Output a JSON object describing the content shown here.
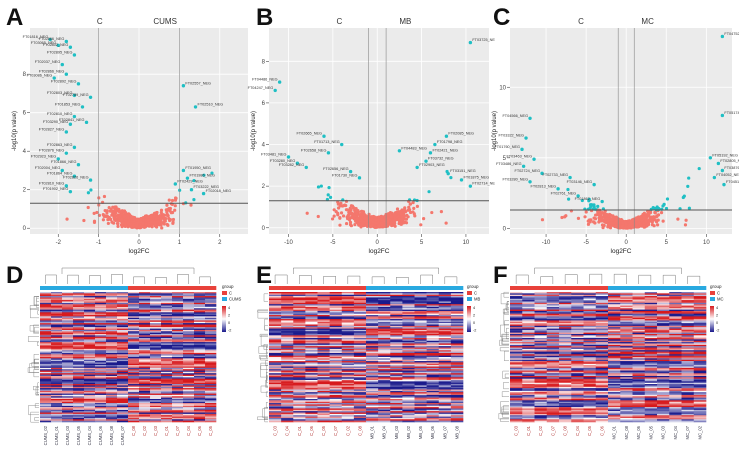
{
  "figure": {
    "panel_letters": [
      "A",
      "B",
      "C",
      "D",
      "E",
      "F"
    ]
  },
  "colors": {
    "grid_bg": "#ebebeb",
    "sig_point": "#1fbfc4",
    "nonsig_point": "#f4776d",
    "threshold_line": "#555555",
    "heat_high": "#d7191c",
    "heat_low": "#1a1a8c",
    "heat_mid": "#ffffff",
    "group_c": "#e8413a",
    "group_treat": "#29a9e0"
  },
  "chart_data": [
    {
      "type": "scatter",
      "panel": "A",
      "title": "CUMS",
      "group_label": "C",
      "xlabel": "log2FC",
      "ylabel": "-log10(p value)",
      "xlim": [
        -2.7,
        2.7
      ],
      "ylim": [
        -0.3,
        10.4
      ],
      "xticks": [
        "-2",
        "-1",
        "0",
        "1",
        "2"
      ],
      "yticks": [
        "0",
        "2",
        "4",
        "6",
        "8"
      ],
      "x_tick_values": [
        -2,
        -1,
        0,
        1,
        2
      ],
      "y_tick_values": [
        0,
        2,
        4,
        6,
        8
      ],
      "threshold_y": 1.3,
      "vlines": [
        -1,
        1
      ],
      "labeled_points": [
        {
          "x": -2.2,
          "y": 9.8,
          "label": "FT01816_NEG"
        },
        {
          "x": -1.8,
          "y": 9.7,
          "label": "FT02866_NEG"
        },
        {
          "x": -2.0,
          "y": 9.5,
          "label": "FT03065_NEG"
        },
        {
          "x": -1.7,
          "y": 9.4,
          "label": "FT02802_NEG"
        },
        {
          "x": -1.6,
          "y": 9.0,
          "label": "FT02895_NEG"
        },
        {
          "x": -1.9,
          "y": 8.5,
          "label": "FT02037_NEG"
        },
        {
          "x": -1.8,
          "y": 8.0,
          "label": "FT02866_NEG"
        },
        {
          "x": -2.1,
          "y": 7.8,
          "label": "FT03086_NEG"
        },
        {
          "x": -1.5,
          "y": 7.5,
          "label": "FT02892_NEG"
        },
        {
          "x": -1.6,
          "y": 6.9,
          "label": "FT02803_NEG"
        },
        {
          "x": -1.2,
          "y": 6.8,
          "label": "FT02789_NEG"
        },
        {
          "x": -1.4,
          "y": 6.3,
          "label": "FT01853_NEG"
        },
        {
          "x": -1.6,
          "y": 5.8,
          "label": "FT02810_NEG"
        },
        {
          "x": -1.7,
          "y": 5.4,
          "label": "FT03290_NEG"
        },
        {
          "x": -1.8,
          "y": 5.0,
          "label": "FT02827_NEG"
        },
        {
          "x": -1.3,
          "y": 5.5,
          "label": "FT02841_NEG"
        },
        {
          "x": -1.6,
          "y": 4.2,
          "label": "FT02863_NEG"
        },
        {
          "x": -1.8,
          "y": 3.9,
          "label": "FT02876_NEG"
        },
        {
          "x": -2.0,
          "y": 3.6,
          "label": "FT02923_NEG"
        },
        {
          "x": -1.5,
          "y": 3.3,
          "label": "FT01866_NEG"
        },
        {
          "x": -1.9,
          "y": 3.0,
          "label": "FT02004_NEG"
        },
        {
          "x": -1.6,
          "y": 2.7,
          "label": "FT01864_NEG"
        },
        {
          "x": -1.2,
          "y": 2.5,
          "label": "FT02826_NEG"
        },
        {
          "x": -1.8,
          "y": 2.2,
          "label": "FT02810_NEG"
        },
        {
          "x": -1.7,
          "y": 1.9,
          "label": "FT01902_NEG"
        },
        {
          "x": 1.1,
          "y": 7.4,
          "label": "FT02557_NEG"
        },
        {
          "x": 1.4,
          "y": 6.3,
          "label": "FT02510_NEG"
        },
        {
          "x": 1.1,
          "y": 3.0,
          "label": "FT01950_NEG"
        },
        {
          "x": 1.2,
          "y": 2.6,
          "label": "FT01986_NEG"
        },
        {
          "x": 0.9,
          "y": 2.3,
          "label": "FT02429_NEG"
        },
        {
          "x": 1.3,
          "y": 2.0,
          "label": "FT03222_NEG"
        },
        {
          "x": 1.6,
          "y": 1.8,
          "label": "FT02018_NEG"
        }
      ]
    },
    {
      "type": "scatter",
      "panel": "B",
      "title": "MB",
      "group_label": "C",
      "xlabel": "log2FC",
      "ylabel": "-log10(p value)",
      "xlim": [
        -12.2,
        12.6
      ],
      "ylim": [
        -0.3,
        9.6
      ],
      "xticks": [
        "-10",
        "-5",
        "0",
        "5",
        "10"
      ],
      "yticks": [
        "0",
        "2",
        "4",
        "6",
        "8"
      ],
      "x_tick_values": [
        -10,
        -5,
        0,
        5,
        10
      ],
      "y_tick_values": [
        0,
        2,
        4,
        6,
        8
      ],
      "threshold_y": 1.3,
      "vlines": [
        -1,
        1
      ],
      "labeled_points": [
        {
          "x": 10.5,
          "y": 8.9,
          "label": "FT03725_NEG"
        },
        {
          "x": -11.0,
          "y": 7.0,
          "label": "FT04486_NEG"
        },
        {
          "x": -11.5,
          "y": 6.6,
          "label": "FT04247_NEG"
        },
        {
          "x": -6.0,
          "y": 4.4,
          "label": "FT02665_NEG"
        },
        {
          "x": -4.0,
          "y": 4.0,
          "label": "FT01713_NEG"
        },
        {
          "x": -5.5,
          "y": 3.6,
          "label": "FT02658_NEG"
        },
        {
          "x": -10.0,
          "y": 3.4,
          "label": "FT03481_NEG"
        },
        {
          "x": -9.0,
          "y": 3.1,
          "label": "FT03280_NEG"
        },
        {
          "x": -8.0,
          "y": 2.9,
          "label": "FT03282_NEG"
        },
        {
          "x": -3.0,
          "y": 2.7,
          "label": "FT02656_NEG"
        },
        {
          "x": -2.0,
          "y": 2.4,
          "label": "FT01730_NEG"
        },
        {
          "x": 2.5,
          "y": 3.7,
          "label": "FT04483_NEG"
        },
        {
          "x": 7.8,
          "y": 4.4,
          "label": "FT02085_NEG"
        },
        {
          "x": 6.5,
          "y": 4.0,
          "label": "FT01798_NEG"
        },
        {
          "x": 6.0,
          "y": 3.6,
          "label": "FT02421_NEG"
        },
        {
          "x": 5.5,
          "y": 3.2,
          "label": "FT03732_NEG"
        },
        {
          "x": 4.5,
          "y": 2.9,
          "label": "FT02903_NEG"
        },
        {
          "x": 8.0,
          "y": 2.6,
          "label": "FT03151_NEG"
        },
        {
          "x": 9.5,
          "y": 2.3,
          "label": "FT01875_NEG"
        },
        {
          "x": 10.5,
          "y": 2.0,
          "label": "FT02714_NEG"
        }
      ]
    },
    {
      "type": "scatter",
      "panel": "C",
      "title": "MC",
      "group_label": "C",
      "xlabel": "log2FC",
      "ylabel": "-log10(p value)",
      "xlim": [
        -14.5,
        13.2
      ],
      "ylim": [
        -0.4,
        14.2
      ],
      "xticks": [
        "-10",
        "-5",
        "0",
        "5",
        "10"
      ],
      "yticks": [
        "0",
        "5",
        "10"
      ],
      "x_tick_values": [
        -10,
        -5,
        0,
        5,
        10
      ],
      "y_tick_values": [
        0,
        5,
        10
      ],
      "threshold_y": 1.3,
      "vlines": [
        -1,
        1
      ],
      "labeled_points": [
        {
          "x": 12.0,
          "y": 13.6,
          "label": "FT04752_NEG"
        },
        {
          "x": 12.0,
          "y": 8.0,
          "label": "FT05174_NEG"
        },
        {
          "x": -12.0,
          "y": 7.8,
          "label": "FT04566_NEG"
        },
        {
          "x": -12.5,
          "y": 6.4,
          "label": "FT03322_NEG"
        },
        {
          "x": -13.0,
          "y": 5.6,
          "label": "FT01760_NEG"
        },
        {
          "x": -11.5,
          "y": 4.9,
          "label": "FT03463_NEG"
        },
        {
          "x": -12.8,
          "y": 4.4,
          "label": "FT03486_NEG"
        },
        {
          "x": -10.5,
          "y": 3.9,
          "label": "FT02724_NEG"
        },
        {
          "x": -12.0,
          "y": 3.3,
          "label": "FT03280_NEG"
        },
        {
          "x": -7.0,
          "y": 3.6,
          "label": "FT02733_NEG"
        },
        {
          "x": -4.0,
          "y": 3.1,
          "label": "FT03146_NEG"
        },
        {
          "x": -8.5,
          "y": 2.8,
          "label": "FT02813_NEG"
        },
        {
          "x": -6.0,
          "y": 2.3,
          "label": "FT02761_NEG"
        },
        {
          "x": -3.0,
          "y": 1.9,
          "label": "FT01862_NEG"
        },
        {
          "x": 10.5,
          "y": 5.0,
          "label": "FT05192_NEG"
        },
        {
          "x": 11.5,
          "y": 4.6,
          "label": "FT02805_NEG"
        },
        {
          "x": 12.0,
          "y": 4.1,
          "label": "FT03876_NEG"
        },
        {
          "x": 11.0,
          "y": 3.6,
          "label": "FT04052_NEG"
        },
        {
          "x": 12.2,
          "y": 3.1,
          "label": "FT04512_NEG"
        }
      ]
    },
    {
      "type": "heatmap",
      "panel": "D",
      "legend_title": "group",
      "groups": [
        "C",
        "CUMS"
      ],
      "scale_ticks": [
        "4",
        "2",
        "0",
        "-2"
      ],
      "columns": [
        "CUMS_02",
        "CUMS_01",
        "CUMS_03",
        "CUMS_05",
        "CUMS_04",
        "CUMS_06",
        "CUMS_08",
        "CUMS_07",
        "C_08",
        "C_02",
        "C_03",
        "C_01",
        "C_07",
        "C_04",
        "C_06",
        "C_05"
      ],
      "column_groups": [
        "CUMS",
        "CUMS",
        "CUMS",
        "CUMS",
        "CUMS",
        "CUMS",
        "CUMS",
        "CUMS",
        "C",
        "C",
        "C",
        "C",
        "C",
        "C",
        "C",
        "C"
      ],
      "n_rows": 96,
      "seed": 11
    },
    {
      "type": "heatmap",
      "panel": "E",
      "legend_title": "group",
      "groups": [
        "C",
        "MB"
      ],
      "scale_ticks": [
        "4",
        "2",
        "0",
        "-2"
      ],
      "columns": [
        "C_03",
        "C_04",
        "C_01",
        "C_06",
        "C_05",
        "C_07",
        "C_02",
        "C_08",
        "MB_01",
        "MB_04",
        "MB_03",
        "MB_02",
        "MB_05",
        "MB_06",
        "MB_07",
        "MB_08"
      ],
      "column_groups": [
        "C",
        "C",
        "C",
        "C",
        "C",
        "C",
        "C",
        "C",
        "MB",
        "MB",
        "MB",
        "MB",
        "MB",
        "MB",
        "MB",
        "MB"
      ],
      "n_rows": 96,
      "seed": 23
    },
    {
      "type": "heatmap",
      "panel": "F",
      "legend_title": "group",
      "groups": [
        "C",
        "MC"
      ],
      "scale_ticks": [
        "4",
        "2",
        "0",
        "-2"
      ],
      "columns": [
        "C_03",
        "C_01",
        "C_02",
        "C_07",
        "C_08",
        "C_04",
        "C_05",
        "C_06",
        "MC_01",
        "MC_08",
        "MC_06",
        "MC_05",
        "MC_03",
        "MC_04",
        "MC_07",
        "MC_02"
      ],
      "column_groups": [
        "C",
        "C",
        "C",
        "C",
        "C",
        "C",
        "C",
        "C",
        "MC",
        "MC",
        "MC",
        "MC",
        "MC",
        "MC",
        "MC",
        "MC"
      ],
      "n_rows": 96,
      "seed": 37
    }
  ]
}
